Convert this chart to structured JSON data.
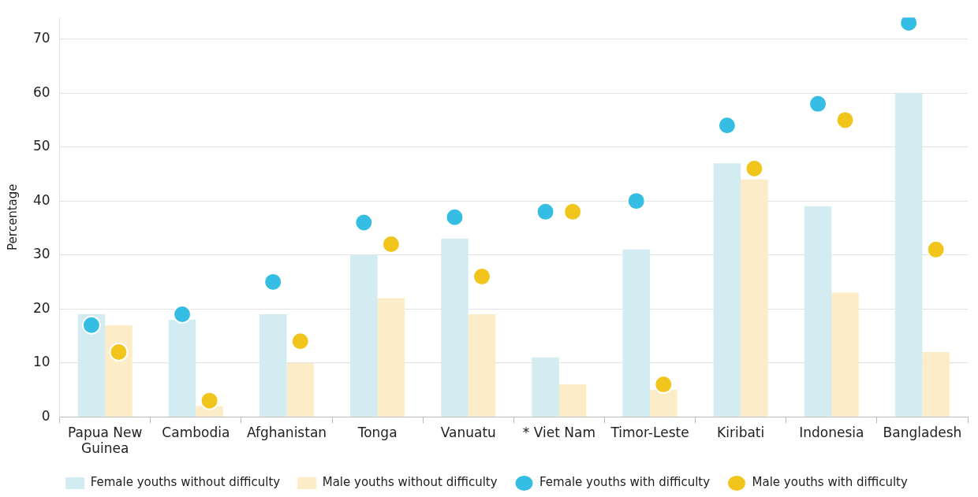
{
  "chart_data": {
    "type": "bar",
    "ylabel": "Percentage",
    "categories": [
      "Papua New Guinea",
      "Cambodia",
      "Afghanistan",
      "Tonga",
      "Vanuatu",
      "* Viet Nam",
      "Timor-Leste",
      "Kiribati",
      "Indonesia",
      "Bangladesh"
    ],
    "series": [
      {
        "name": "Female youths without difficulty",
        "color": "#d3ecf2",
        "values": [
          19,
          18,
          19,
          30,
          33,
          11,
          31,
          47,
          39,
          60
        ]
      },
      {
        "name": "Male youths without difficulty",
        "color": "#fdecc8",
        "values": [
          17,
          2,
          10,
          22,
          19,
          6,
          5,
          44,
          23,
          12
        ]
      },
      {
        "name": "Female youths with difficulty",
        "type": "scatter",
        "color": "#35bde3",
        "x": [
          "Papua New Guinea",
          "Cambodia",
          "Afghanistan",
          "Tonga",
          "Vanuatu",
          "* Viet Nam",
          "Timor-Leste",
          "Kiribati",
          "Indonesia",
          "Bangladesh"
        ],
        "values": [
          17,
          19,
          25,
          36,
          37,
          38,
          40,
          54,
          58,
          73
        ]
      },
      {
        "name": "Male youths with difficulty",
        "type": "scatter",
        "color": "#f2c51c",
        "x": [
          "Papua New Guinea",
          "Cambodia",
          "Afghanistan",
          "Tonga",
          "Vanuatu",
          "* Viet Nam",
          "Timor-Leste",
          "Kiribati",
          "Indonesia",
          "Bangladesh"
        ],
        "values": [
          12,
          3,
          14,
          32,
          26,
          38,
          6,
          46,
          55,
          31
        ]
      }
    ],
    "ylim": [
      0,
      74
    ],
    "yticks": [
      0,
      10,
      20,
      30,
      40,
      50,
      60,
      70
    ],
    "grid": "y",
    "legend": "bottom",
    "marker": "circle"
  }
}
